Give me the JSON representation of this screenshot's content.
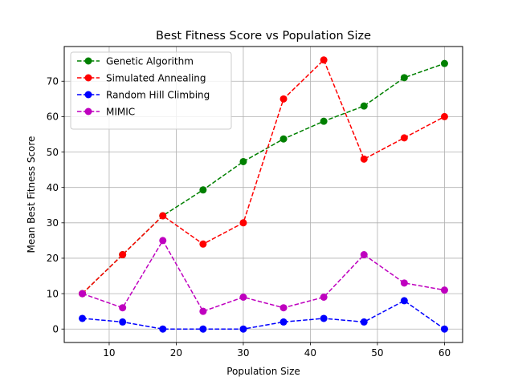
{
  "chart_data": {
    "type": "line",
    "title": "Best Fitness Score vs Population Size",
    "xlabel": "Population Size",
    "ylabel": "Mean Best Fitness Score",
    "xlim": [
      3.3,
      62.7
    ],
    "ylim": [
      -3.8,
      79.8
    ],
    "xticks": [
      10,
      20,
      30,
      40,
      50,
      60
    ],
    "yticks": [
      0,
      10,
      20,
      30,
      40,
      50,
      60,
      70
    ],
    "grid": true,
    "legend_position": "top-left",
    "x": [
      6,
      12,
      18,
      24,
      30,
      36,
      42,
      48,
      54,
      60
    ],
    "series": [
      {
        "name": "Genetic Algorithm",
        "color": "#008000",
        "values": [
          10,
          21,
          32,
          39.3,
          47.3,
          53.7,
          58.7,
          63,
          71,
          75
        ]
      },
      {
        "name": "Simulated Annealing",
        "color": "#ff0000",
        "values": [
          10,
          21,
          32,
          24,
          30,
          65,
          76,
          48,
          54,
          60
        ]
      },
      {
        "name": "Random Hill Climbing",
        "color": "#0000ff",
        "values": [
          3,
          2,
          0,
          0,
          0,
          2,
          3,
          2,
          8,
          0
        ]
      },
      {
        "name": "MIMIC",
        "color": "#bf00bf",
        "values": [
          10,
          6,
          25,
          5,
          9,
          6,
          9,
          21,
          13,
          11
        ]
      }
    ]
  }
}
